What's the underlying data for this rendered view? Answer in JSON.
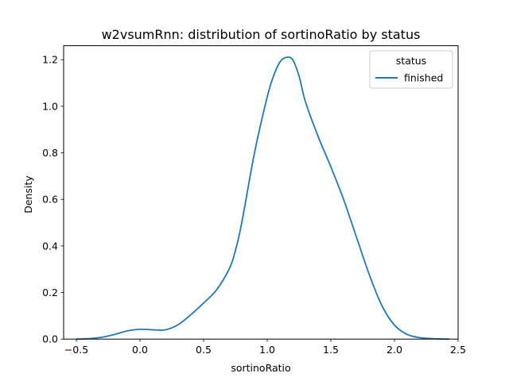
{
  "chart_data": {
    "type": "line",
    "title": "w2vsumRnn: distribution of sortinoRatio by status",
    "xlabel": "sortinoRatio",
    "ylabel": "Density",
    "xlim": [
      -0.6,
      2.5
    ],
    "ylim": [
      0.0,
      1.26
    ],
    "xticks": [
      -0.5,
      0.0,
      0.5,
      1.0,
      1.5,
      2.0,
      2.5
    ],
    "xtick_labels": [
      "−0.5",
      "0.0",
      "0.5",
      "1.0",
      "1.5",
      "2.0",
      "2.5"
    ],
    "yticks": [
      0.0,
      0.2,
      0.4,
      0.6,
      0.8,
      1.0,
      1.2
    ],
    "ytick_labels": [
      "0.0",
      "0.2",
      "0.4",
      "0.6",
      "0.8",
      "1.0",
      "1.2"
    ],
    "grid": false,
    "legend": {
      "title": "status",
      "placement": "top-right"
    },
    "series": [
      {
        "name": "finished",
        "color": "#1f77b4",
        "x": [
          -0.5,
          -0.4,
          -0.3,
          -0.2,
          -0.1,
          0.0,
          0.1,
          0.2,
          0.3,
          0.4,
          0.5,
          0.6,
          0.7,
          0.75,
          0.8,
          0.9,
          1.0,
          1.05,
          1.1,
          1.15,
          1.2,
          1.25,
          1.3,
          1.4,
          1.5,
          1.6,
          1.7,
          1.8,
          1.9,
          2.0,
          2.1,
          2.2,
          2.3,
          2.43
        ],
        "y": [
          0.0,
          0.002,
          0.008,
          0.02,
          0.035,
          0.042,
          0.04,
          0.04,
          0.062,
          0.105,
          0.155,
          0.21,
          0.3,
          0.38,
          0.5,
          0.8,
          1.04,
          1.13,
          1.19,
          1.21,
          1.2,
          1.13,
          1.02,
          0.87,
          0.74,
          0.6,
          0.44,
          0.28,
          0.145,
          0.06,
          0.02,
          0.006,
          0.002,
          0.0
        ]
      }
    ]
  }
}
